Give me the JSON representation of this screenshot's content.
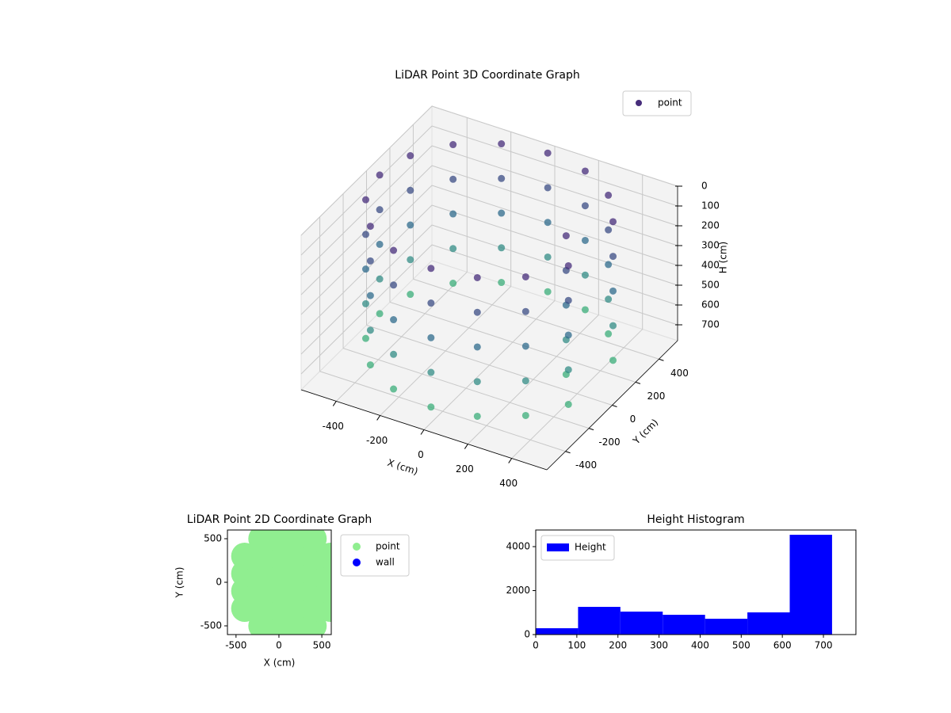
{
  "chart_data": [
    {
      "type": "scatter3d",
      "title": "LiDAR Point 3D Coordinate Graph",
      "xlabel": "X (cm)",
      "ylabel": "Y (cm)",
      "zlabel": "H (cm)",
      "xlim": [
        -560,
        560
      ],
      "ylim": [
        -560,
        560
      ],
      "zlim": [
        0,
        780
      ],
      "z_inverted": true,
      "xticks": [
        -400,
        -200,
        0,
        200,
        400
      ],
      "yticks": [
        -400,
        -200,
        0,
        200,
        400
      ],
      "zticks": [
        0,
        100,
        200,
        300,
        400,
        500,
        600,
        700
      ],
      "grid": true,
      "legend": "upper right",
      "colormap": [
        "#472d7b",
        "#2c728e",
        "#3fbc73"
      ],
      "series": [
        {
          "name": "point",
          "color": "#472d7b",
          "x": [
            350,
            462,
            354,
            191,
            0,
            -191,
            -354,
            -462,
            -500,
            -462,
            -354,
            -191,
            0,
            191,
            354,
            462,
            350,
            462,
            354,
            191,
            0,
            -191,
            -354,
            -462,
            -500,
            -462,
            -354,
            -191,
            0,
            191,
            354,
            462,
            350,
            462,
            354,
            191,
            0,
            -191,
            -354,
            -462,
            -500,
            -462,
            -354,
            -191,
            0,
            191,
            354,
            462,
            350,
            462,
            354,
            191,
            0,
            -191,
            -354,
            -462,
            -500,
            -462,
            -354,
            -191,
            0,
            191,
            354,
            462,
            350,
            462,
            354,
            191,
            0,
            -191,
            -354,
            -462,
            -500,
            -462,
            -354,
            -191,
            0,
            191,
            354,
            462
          ],
          "y": [
            0,
            191,
            354,
            462,
            500,
            462,
            354,
            191,
            0,
            -191,
            -354,
            -462,
            -500,
            -462,
            -354,
            -191,
            0,
            191,
            354,
            462,
            500,
            462,
            354,
            191,
            0,
            -191,
            -354,
            -462,
            -500,
            -462,
            -354,
            -191,
            0,
            191,
            354,
            462,
            500,
            462,
            354,
            191,
            0,
            -191,
            -354,
            -462,
            -500,
            -462,
            -354,
            -191,
            0,
            191,
            354,
            462,
            500,
            462,
            354,
            191,
            0,
            -191,
            -354,
            -462,
            -500,
            -462,
            -354,
            -191,
            0,
            191,
            354,
            462,
            500,
            462,
            354,
            191,
            0,
            -191,
            -354,
            -462,
            -500,
            -462,
            -354,
            -191
          ],
          "z": [
            0,
            0,
            0,
            0,
            0,
            0,
            0,
            0,
            0,
            0,
            0,
            0,
            0,
            0,
            0,
            0,
            175,
            175,
            175,
            175,
            175,
            175,
            175,
            175,
            175,
            175,
            175,
            175,
            175,
            175,
            175,
            175,
            350,
            350,
            350,
            350,
            350,
            350,
            350,
            350,
            350,
            350,
            350,
            350,
            350,
            350,
            350,
            350,
            525,
            525,
            525,
            525,
            525,
            525,
            525,
            525,
            525,
            525,
            525,
            525,
            525,
            525,
            525,
            525,
            700,
            700,
            700,
            700,
            700,
            700,
            700,
            700,
            700,
            700,
            700,
            700,
            700,
            700,
            700,
            700
          ]
        }
      ]
    },
    {
      "type": "scatter",
      "title": "LiDAR Point 2D Coordinate Graph",
      "xlabel": "X (cm)",
      "ylabel": "Y (cm)",
      "xlim": [
        -600,
        610
      ],
      "ylim": [
        -600,
        600
      ],
      "xticks": [
        -500,
        0,
        500
      ],
      "yticks": [
        -500,
        0,
        500
      ],
      "legend": "outside upper right",
      "series": [
        {
          "name": "point",
          "color": "#90ee90",
          "x": [
            -400,
            -400,
            -400,
            -400,
            -200,
            -200,
            -200,
            -200,
            -200,
            -200,
            0,
            0,
            0,
            0,
            0,
            0,
            200,
            200,
            200,
            200,
            200,
            200,
            400,
            400,
            400,
            400,
            400,
            400,
            600,
            600,
            600,
            600
          ],
          "y": [
            -300,
            -100,
            100,
            300,
            -500,
            -300,
            -100,
            100,
            300,
            500,
            -500,
            -300,
            -100,
            100,
            300,
            500,
            -500,
            -300,
            -100,
            100,
            300,
            500,
            -500,
            -300,
            -100,
            100,
            300,
            500,
            -300,
            -100,
            100,
            300
          ]
        },
        {
          "name": "wall",
          "color": "#0000ff",
          "x": [],
          "y": []
        }
      ]
    },
    {
      "type": "histogram",
      "title": "Height Histogram",
      "xlim": [
        0,
        779
      ],
      "ylim": [
        0,
        4757
      ],
      "xticks": [
        0,
        100,
        200,
        300,
        400,
        500,
        600,
        700
      ],
      "yticks": [
        0,
        2000,
        4000
      ],
      "legend": "upper left",
      "bins": [
        0,
        103,
        206,
        309,
        412,
        515,
        618,
        721
      ],
      "series": [
        {
          "name": "Height",
          "color": "#0000ff",
          "values": [
            288,
            1260,
            1045,
            900,
            720,
            1010,
            4540
          ]
        }
      ]
    }
  ]
}
